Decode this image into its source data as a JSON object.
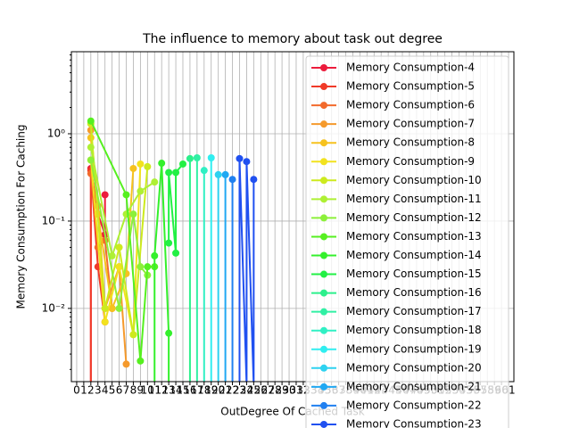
{
  "chart_data": {
    "type": "line",
    "title": "The influence to memory about task out degree",
    "xlabel": "OutDegree Of Cached Task",
    "ylabel": "Memory Consumption For Caching",
    "ylog": true,
    "grid": true,
    "legend": "upper right",
    "xlim": [
      -0.75,
      61.75
    ],
    "ylim": [
      0.00145,
      8.7
    ],
    "xticks": [
      0,
      1,
      2,
      3,
      4,
      5,
      6,
      7,
      8,
      9,
      10,
      11,
      12,
      13,
      14,
      15,
      16,
      17,
      18,
      19,
      20,
      21,
      22,
      23,
      24,
      25,
      26,
      27,
      28,
      29,
      30,
      31,
      32,
      33,
      34,
      35,
      36,
      37,
      38,
      39,
      40,
      41,
      42,
      43,
      44,
      45,
      46,
      47,
      48,
      49,
      50,
      51,
      52,
      53,
      54,
      55,
      56,
      57,
      58,
      59,
      60,
      61
    ],
    "yticks": [
      {
        "value": 0.01,
        "label": "10⁻²"
      },
      {
        "value": 0.1,
        "label": "10⁻¹"
      },
      {
        "value": 1,
        "label": "10⁰"
      }
    ],
    "series": [
      {
        "name": "Memory Consumption-4",
        "color": "#ec1c3c",
        "x": [
          2,
          2,
          3,
          4,
          4
        ],
        "values": [
          0,
          0.4,
          0.12,
          0.07,
          0.2
        ]
      },
      {
        "name": "Memory Consumption-5",
        "color": "#f03a28",
        "x": [
          2,
          2,
          3,
          4
        ],
        "values": [
          0,
          0.38,
          0.03,
          0.007
        ]
      },
      {
        "name": "Memory Consumption-6",
        "color": "#f26a2c",
        "x": [
          2,
          3,
          4,
          5
        ],
        "values": [
          0.35,
          0.05,
          0.06,
          0.01
        ]
      },
      {
        "name": "Memory Consumption-7",
        "color": "#f59a2c",
        "x": [
          2,
          3,
          4,
          6,
          7
        ],
        "values": [
          1.1,
          0.15,
          0.01,
          0.03,
          0.0023
        ]
      },
      {
        "name": "Memory Consumption-8",
        "color": "#f6c21e",
        "x": [
          2,
          3,
          5,
          7,
          8
        ],
        "values": [
          0.9,
          0.12,
          0.01,
          0.025,
          0.4
        ]
      },
      {
        "name": "Memory Consumption-9",
        "color": "#f2e21e",
        "x": [
          2,
          4,
          6,
          8,
          9
        ],
        "values": [
          0.5,
          0.007,
          0.03,
          0.005,
          0.45
        ]
      },
      {
        "name": "Memory Consumption-10",
        "color": "#cdea1e",
        "x": [
          2,
          4,
          6,
          8,
          10
        ],
        "values": [
          1.3,
          0.01,
          0.05,
          0.005,
          0.42
        ]
      },
      {
        "name": "Memory Consumption-11",
        "color": "#aef034",
        "x": [
          2,
          5,
          7,
          9,
          11
        ],
        "values": [
          0.7,
          0.04,
          0.12,
          0.22,
          0.28
        ]
      },
      {
        "name": "Memory Consumption-12",
        "color": "#8cf03a",
        "x": [
          2,
          6,
          8,
          9,
          10
        ],
        "values": [
          0.5,
          0.01,
          0.12,
          0.03,
          0.024
        ]
      },
      {
        "name": "Memory Consumption-13",
        "color": "#56f020",
        "x": [
          2,
          7,
          9,
          10,
          11
        ],
        "values": [
          1.4,
          0.2,
          0.0025,
          0.03,
          0.03
        ]
      },
      {
        "name": "Memory Consumption-14",
        "color": "#34f02c",
        "x": [
          11,
          11,
          12,
          13,
          13
        ],
        "values": [
          0,
          0.04,
          0.46,
          0.0052,
          0
        ]
      },
      {
        "name": "Memory Consumption-15",
        "color": "#22f044",
        "x": [
          13,
          13,
          14,
          14,
          15
        ],
        "values": [
          0.056,
          0.36,
          0.043,
          0.36,
          0.45
        ]
      },
      {
        "name": "Memory Consumption-16",
        "color": "#2cf08c",
        "x": [
          16,
          16
        ],
        "values": [
          0,
          0.52
        ]
      },
      {
        "name": "Memory Consumption-17",
        "color": "#30f0a4",
        "x": [
          17,
          17
        ],
        "values": [
          0,
          0.53
        ]
      },
      {
        "name": "Memory Consumption-18",
        "color": "#30f0c4",
        "x": [
          18,
          18
        ],
        "values": [
          0,
          0.38
        ]
      },
      {
        "name": "Memory Consumption-19",
        "color": "#30eef0",
        "x": [
          19,
          19
        ],
        "values": [
          0,
          0.53
        ]
      },
      {
        "name": "Memory Consumption-20",
        "color": "#2ed2f0",
        "x": [
          20,
          20
        ],
        "values": [
          0,
          0.34
        ]
      },
      {
        "name": "Memory Consumption-21",
        "color": "#20a8f2",
        "x": [
          21,
          21
        ],
        "values": [
          0,
          0.34
        ]
      },
      {
        "name": "Memory Consumption-22",
        "color": "#2080f0",
        "x": [
          22,
          22
        ],
        "values": [
          0,
          0.3
        ]
      },
      {
        "name": "Memory Consumption-23",
        "color": "#2050f0",
        "x": [
          23,
          23,
          24,
          24,
          25,
          25
        ],
        "values": [
          0,
          0.52,
          0,
          0.48,
          0,
          0.3
        ]
      }
    ]
  }
}
